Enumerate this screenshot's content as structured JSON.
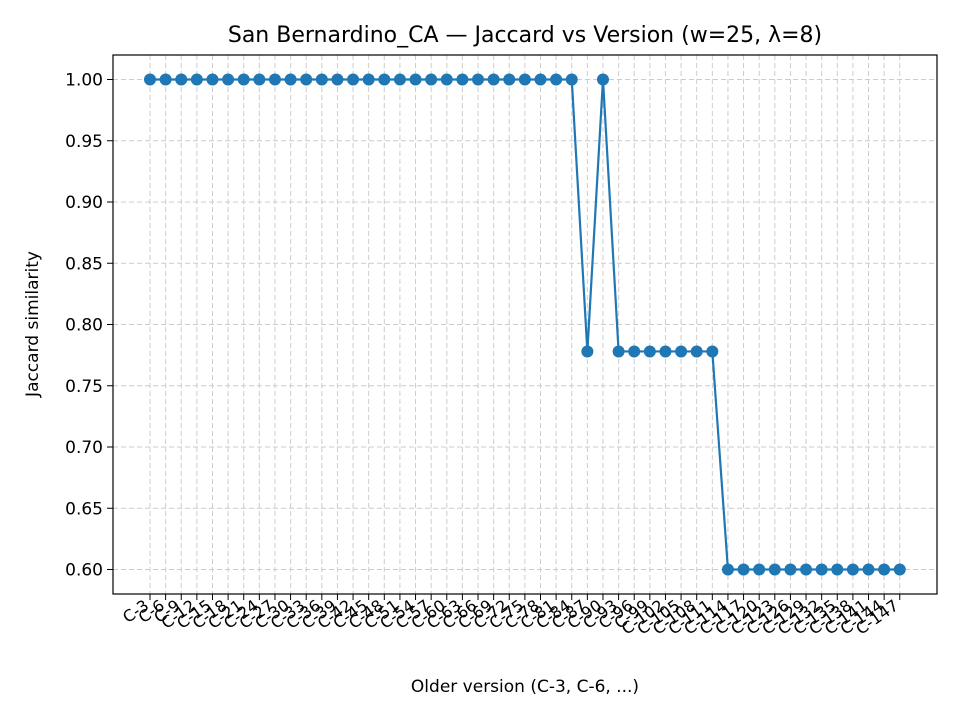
{
  "chart_data": {
    "type": "line",
    "title": "San Bernardino_CA — Jaccard vs Version (w=25, λ=8)",
    "xlabel": "Older version (C-3, C-6, ...)",
    "ylabel": "Jaccard similarity",
    "ylim": [
      0.58,
      1.02
    ],
    "y_ticks": [
      "0.60",
      "0.65",
      "0.70",
      "0.75",
      "0.80",
      "0.85",
      "0.90",
      "0.95",
      "1.00"
    ],
    "grid": true,
    "legend": "none",
    "series_color": "#1f77b4",
    "x": [
      "C-3",
      "C-6",
      "C-9",
      "C-12",
      "C-15",
      "C-18",
      "C-21",
      "C-24",
      "C-27",
      "C-30",
      "C-33",
      "C-36",
      "C-39",
      "C-42",
      "C-45",
      "C-48",
      "C-51",
      "C-54",
      "C-57",
      "C-60",
      "C-63",
      "C-66",
      "C-69",
      "C-72",
      "C-75",
      "C-78",
      "C-81",
      "C-84",
      "C-87",
      "C-90",
      "C-93",
      "C-96",
      "C-99",
      "C-102",
      "C-105",
      "C-108",
      "C-111",
      "C-114",
      "C-117",
      "C-120",
      "C-123",
      "C-126",
      "C-129",
      "C-132",
      "C-135",
      "C-138",
      "C-141",
      "C-144",
      "C-147"
    ],
    "series": [
      {
        "values": [
          1.0,
          1.0,
          1.0,
          1.0,
          1.0,
          1.0,
          1.0,
          1.0,
          1.0,
          1.0,
          1.0,
          1.0,
          1.0,
          1.0,
          1.0,
          1.0,
          1.0,
          1.0,
          1.0,
          1.0,
          1.0,
          1.0,
          1.0,
          1.0,
          1.0,
          1.0,
          1.0,
          1.0,
          0.778,
          1.0,
          0.778,
          0.778,
          0.778,
          0.778,
          0.778,
          0.778,
          0.778,
          0.6,
          0.6,
          0.6,
          0.6,
          0.6,
          0.6,
          0.6,
          0.6,
          0.6,
          0.6,
          0.6,
          0.6
        ]
      }
    ]
  }
}
